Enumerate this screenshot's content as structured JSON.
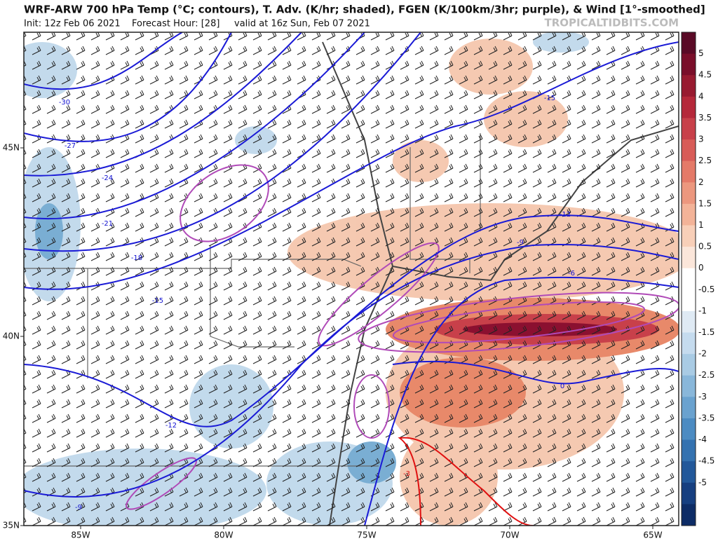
{
  "header": {
    "title": "WRF-ARW 700 hPa Temp (°C; contours), T. Adv. (K/hr; shaded), FGEN (K/100km/3hr; purple), & Wind [1°-smoothed]",
    "init": "Init: 12z Feb 06 2021",
    "forecast_hour": "Forecast Hour: [28]",
    "valid": "valid at 16z Sun, Feb 07 2021",
    "source": "TROPICALTIDBITS.COM"
  },
  "map": {
    "lon_labels": [
      "85W",
      "80W",
      "75W",
      "70W",
      "65W"
    ],
    "lat_labels": [
      "45N",
      "40N",
      "35N"
    ],
    "contour_labels": [
      "-30",
      "-27",
      "-24",
      "-21",
      "-18",
      "-15",
      "-12",
      "-9",
      "-15",
      "-12",
      "-9",
      "-6",
      "0",
      "-3"
    ]
  },
  "colorbar": {
    "labels": [
      "5",
      "4.5",
      "4",
      "3.5",
      "3",
      "2.5",
      "2",
      "1.5",
      "1",
      "0.5",
      "0",
      "-0.5",
      "-1",
      "-1.5",
      "-2",
      "-2.5",
      "-3",
      "-3.5",
      "-4",
      "-4.5",
      "-5"
    ]
  }
}
